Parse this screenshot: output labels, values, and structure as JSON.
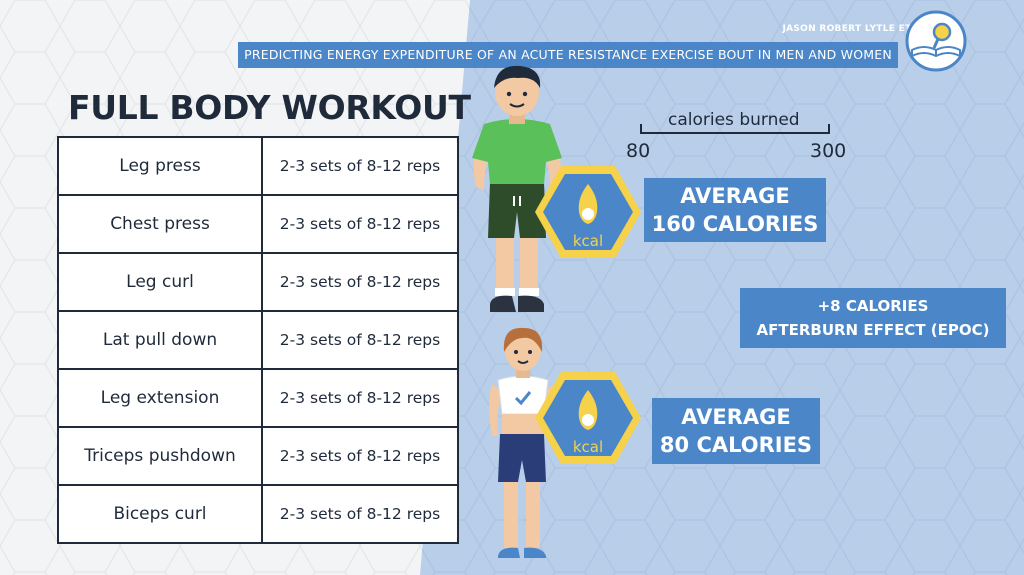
{
  "header": {
    "author": "JASON ROBERT LYTLE ET AL.",
    "title": "PREDICTING ENERGY EXPENDITURE OF AN ACUTE RESISTANCE EXERCISE BOUT IN MEN AND WOMEN",
    "icon": "book-magnifier-icon"
  },
  "workout": {
    "title": "FULL BODY WORKOUT",
    "rows": [
      {
        "exercise": "Leg press",
        "sets": "2-3 sets of 8-12 reps"
      },
      {
        "exercise": "Chest press",
        "sets": "2-3 sets of 8-12 reps"
      },
      {
        "exercise": "Leg curl",
        "sets": "2-3 sets of 8-12 reps"
      },
      {
        "exercise": "Lat pull down",
        "sets": "2-3 sets of 8-12 reps"
      },
      {
        "exercise": "Leg extension",
        "sets": "2-3 sets of 8-12 reps"
      },
      {
        "exercise": "Triceps pushdown",
        "sets": "2-3 sets of 8-12 reps"
      },
      {
        "exercise": "Biceps curl",
        "sets": "2-3 sets of 8-12 reps"
      }
    ]
  },
  "scale": {
    "label": "calories burned",
    "min": "80",
    "max": "300"
  },
  "men": {
    "badge": "kcal",
    "line1": "AVERAGE",
    "line2": "160 CALORIES"
  },
  "women": {
    "badge": "kcal",
    "line1": "AVERAGE",
    "line2": "80 CALORIES"
  },
  "epoc": {
    "line1": "+8 CALORIES",
    "line2": "AFTERBURN EFFECT (EPOC)"
  },
  "colors": {
    "accent_blue": "#4a86c8",
    "panel_blue": "#b9cfe9",
    "badge_yellow": "#f5d24a",
    "dark_text": "#1f2a3a"
  }
}
